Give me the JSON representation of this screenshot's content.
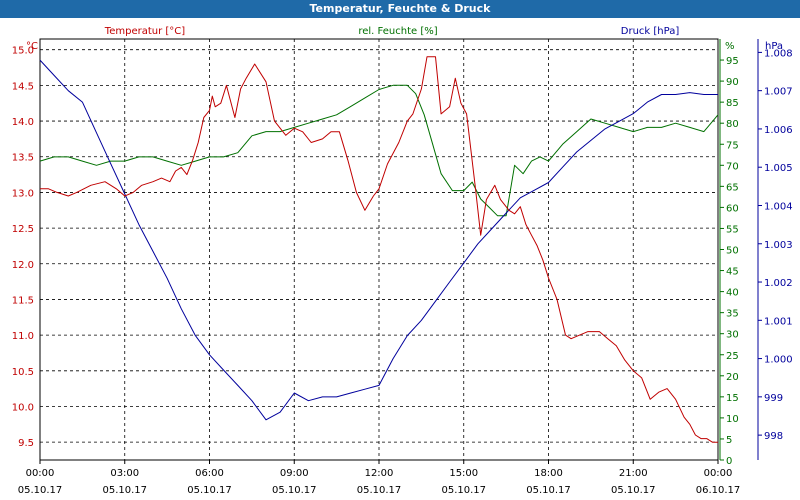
{
  "window": {
    "title": "Temperatur, Feuchte & Druck"
  },
  "colors": {
    "temperature": "#c00000",
    "humidity": "#007000",
    "pressure": "#00009c",
    "titlebar": "#1f6aa8"
  },
  "chart_data": {
    "type": "line",
    "title": "Temperatur, Feuchte & Druck",
    "x_labels": [
      {
        "time": "00:00",
        "date": "05.10.17"
      },
      {
        "time": "03:00",
        "date": "05.10.17"
      },
      {
        "time": "06:00",
        "date": "05.10.17"
      },
      {
        "time": "09:00",
        "date": "05.10.17"
      },
      {
        "time": "12:00",
        "date": "05.10.17"
      },
      {
        "time": "15:00",
        "date": "05.10.17"
      },
      {
        "time": "18:00",
        "date": "05.10.17"
      },
      {
        "time": "21:00",
        "date": "05.10.17"
      },
      {
        "time": "00:00",
        "date": "06.10.17"
      }
    ],
    "grid": true,
    "axes": {
      "temperature": {
        "label": "Temperatur [°C]",
        "unit": "°C",
        "side": "left",
        "range": [
          9.25,
          15.15
        ],
        "ticks": [
          "9.5",
          "10.0",
          "10.5",
          "11.0",
          "11.5",
          "12.0",
          "12.5",
          "13.0",
          "13.5",
          "14.0",
          "14.5",
          "15.0"
        ]
      },
      "humidity": {
        "label": "rel. Feuchte [%]",
        "unit": "%",
        "side": "right",
        "range": [
          0,
          100
        ],
        "ticks": [
          "0",
          "5",
          "10",
          "15",
          "20",
          "25",
          "30",
          "35",
          "40",
          "45",
          "50",
          "55",
          "60",
          "65",
          "70",
          "75",
          "80",
          "85",
          "90",
          "95"
        ]
      },
      "pressure": {
        "label": "Druck [hPa]",
        "unit": "hPa",
        "side": "right-outer",
        "range": [
          997.35,
          1008.35
        ],
        "ticks": [
          "998",
          "999",
          "1.000",
          "1.001",
          "1.002",
          "1.003",
          "1.004",
          "1.005",
          "1.006",
          "1.007",
          "1.008"
        ]
      }
    },
    "series": [
      {
        "name": "Temperatur [°C]",
        "axis": "temperature",
        "x": [
          0,
          0.3,
          0.6,
          1,
          1.3,
          1.8,
          2.3,
          2.7,
          3,
          3.3,
          3.6,
          4,
          4.3,
          4.6,
          4.8,
          5,
          5.2,
          5.4,
          5.6,
          5.8,
          6,
          6.1,
          6.2,
          6.4,
          6.6,
          6.9,
          7.1,
          7.3,
          7.6,
          8,
          8.3,
          8.7,
          9,
          9.3,
          9.6,
          10,
          10.3,
          10.6,
          10.9,
          11.2,
          11.5,
          11.8,
          12,
          12.3,
          12.7,
          13,
          13.2,
          13.5,
          13.7,
          14,
          14.2,
          14.5,
          14.7,
          14.9,
          15.1,
          15.4,
          15.6,
          15.8,
          16.1,
          16.3,
          16.6,
          16.8,
          17,
          17.2,
          17.4,
          17.6,
          17.8,
          18,
          18.3,
          18.6,
          18.8,
          19.1,
          19.4,
          19.8,
          20.1,
          20.4,
          20.7,
          21,
          21.3,
          21.6,
          21.9,
          22.2,
          22.5,
          22.8,
          23,
          23.2,
          23.4,
          23.6,
          23.8,
          24
        ],
        "y": [
          13.05,
          13.05,
          13.0,
          12.95,
          13.0,
          13.1,
          13.15,
          13.05,
          12.95,
          13.0,
          13.1,
          13.15,
          13.2,
          13.15,
          13.3,
          13.35,
          13.25,
          13.45,
          13.7,
          14.05,
          14.15,
          14.35,
          14.2,
          14.25,
          14.5,
          14.05,
          14.45,
          14.6,
          14.8,
          14.55,
          14.0,
          13.8,
          13.9,
          13.85,
          13.7,
          13.75,
          13.85,
          13.85,
          13.45,
          13.0,
          12.75,
          12.95,
          13.05,
          13.4,
          13.7,
          14.0,
          14.1,
          14.45,
          14.9,
          14.9,
          14.1,
          14.2,
          14.6,
          14.25,
          14.1,
          13.1,
          12.4,
          12.9,
          13.1,
          12.9,
          12.75,
          12.7,
          12.8,
          12.55,
          12.4,
          12.25,
          12.05,
          11.8,
          11.5,
          11.0,
          10.95,
          11.0,
          11.05,
          11.05,
          10.95,
          10.85,
          10.65,
          10.5,
          10.4,
          10.1,
          10.2,
          10.25,
          10.1,
          9.85,
          9.75,
          9.6,
          9.55,
          9.55,
          9.5,
          9.5
        ]
      },
      {
        "name": "rel. Feuchte [%]",
        "axis": "humidity",
        "x": [
          0,
          0.5,
          1,
          1.5,
          2,
          2.5,
          3,
          3.5,
          4,
          4.5,
          5,
          5.5,
          6,
          6.5,
          7,
          7.5,
          8,
          8.5,
          9,
          9.5,
          10,
          10.5,
          11,
          11.5,
          12,
          12.5,
          13,
          13.3,
          13.6,
          13.9,
          14.2,
          14.6,
          15,
          15.3,
          15.6,
          15.9,
          16.2,
          16.5,
          16.8,
          17.1,
          17.4,
          17.7,
          18,
          18.5,
          19,
          19.5,
          20,
          20.5,
          21,
          21.5,
          22,
          22.5,
          23,
          23.5,
          24
        ],
        "y": [
          71,
          72,
          72,
          71,
          70,
          71,
          71,
          72,
          72,
          71,
          70,
          71,
          72,
          72,
          73,
          77,
          78,
          78,
          79,
          80,
          81,
          82,
          84,
          86,
          88,
          89,
          89,
          87,
          82,
          75,
          68,
          64,
          64,
          66,
          62,
          60,
          58,
          58,
          70,
          68,
          71,
          72,
          71,
          75,
          78,
          81,
          80,
          79,
          78,
          79,
          79,
          80,
          79,
          78,
          82
        ]
      },
      {
        "name": "Druck [hPa]",
        "axis": "pressure",
        "x": [
          0,
          0.5,
          1,
          1.5,
          2,
          2.5,
          3,
          3.5,
          4,
          4.5,
          5,
          5.5,
          6,
          6.5,
          7,
          7.5,
          8,
          8.5,
          9,
          9.5,
          10,
          10.5,
          11,
          11.5,
          12,
          12.5,
          13,
          13.5,
          14,
          14.5,
          15,
          15.5,
          16,
          16.5,
          17,
          17.5,
          18,
          18.5,
          19,
          19.5,
          20,
          20.5,
          21,
          21.5,
          22,
          22.5,
          23,
          23.5,
          24
        ],
        "y": [
          1007.8,
          1007.4,
          1007.0,
          1006.7,
          1005.9,
          1005.1,
          1004.3,
          1003.5,
          1002.8,
          1002.1,
          1001.3,
          1000.6,
          1000.1,
          999.7,
          999.3,
          998.9,
          998.4,
          998.6,
          999.1,
          998.9,
          999.0,
          999.0,
          999.1,
          999.2,
          999.3,
          1000.0,
          1000.6,
          1001.0,
          1001.5,
          1002.0,
          1002.5,
          1003.0,
          1003.4,
          1003.8,
          1004.2,
          1004.4,
          1004.6,
          1005.0,
          1005.4,
          1005.7,
          1006.0,
          1006.2,
          1006.4,
          1006.7,
          1006.9,
          1006.9,
          1006.95,
          1006.9,
          1006.9
        ]
      }
    ]
  }
}
